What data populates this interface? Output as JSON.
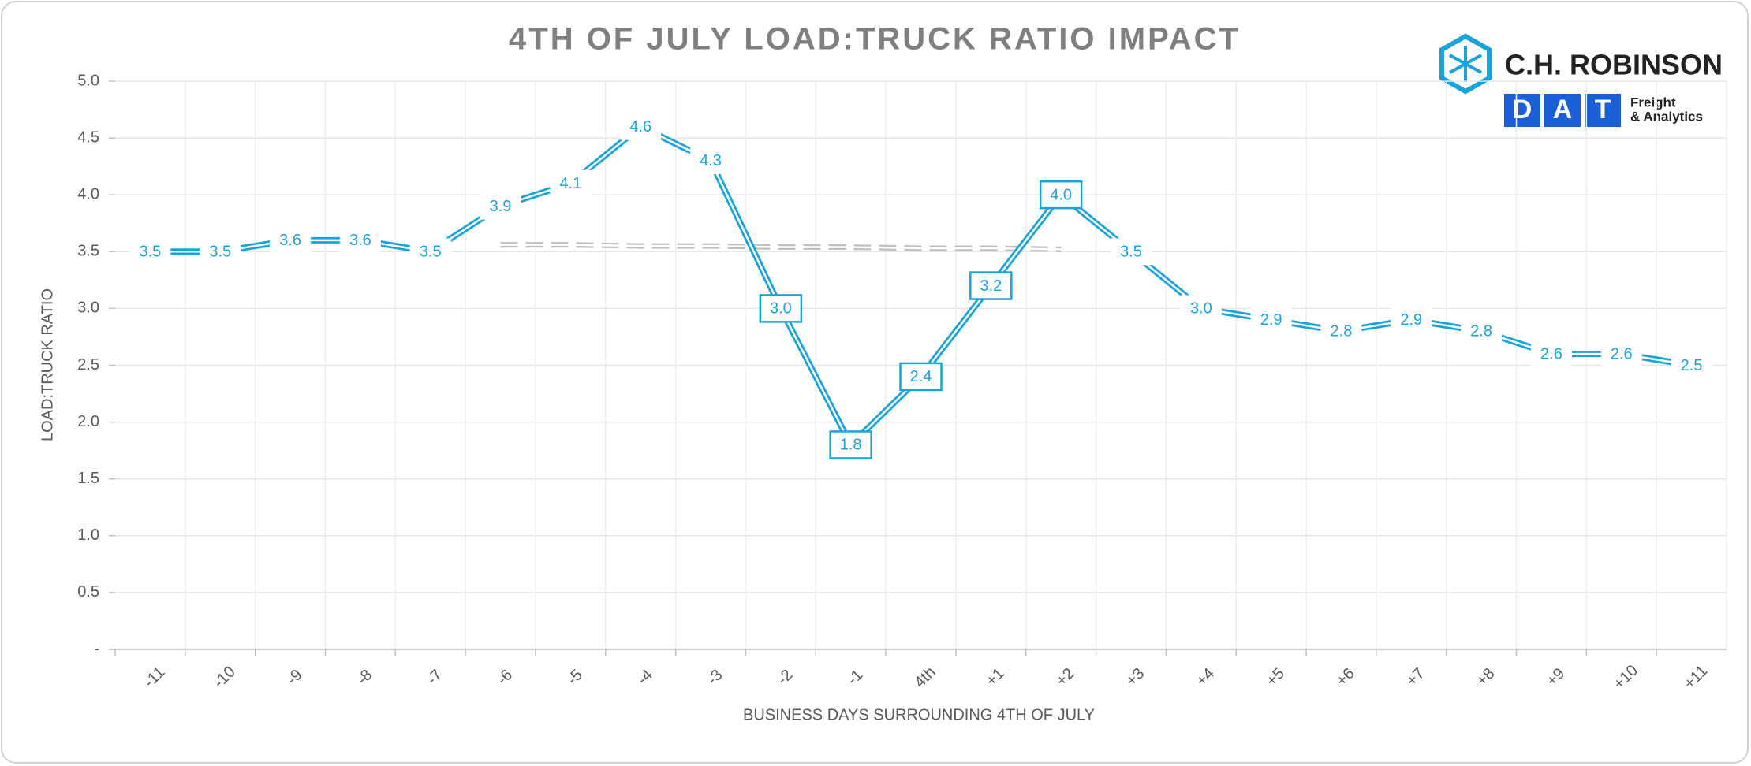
{
  "logos": {
    "brand": "C.H. ROBINSON",
    "dat": [
      "D",
      "A",
      "T"
    ],
    "dat_line1": "Freight",
    "dat_line2": "& Analytics"
  },
  "chart_data": {
    "type": "line",
    "title": "4TH OF JULY LOAD:TRUCK RATIO IMPACT",
    "x_label": "BUSINESS DAYS SURROUNDING 4TH OF JULY",
    "y_label": "LOAD:TRUCK RATIO",
    "categories": [
      "-11",
      "-10",
      "-9",
      "-8",
      "-7",
      "-6",
      "-5",
      "-4",
      "-3",
      "-2",
      "-1",
      "4th",
      "+1",
      "+2",
      "+3",
      "+4",
      "+5",
      "+6",
      "+7",
      "+8",
      "+9",
      "+10",
      "+11"
    ],
    "series": [
      {
        "color": "#1aa3d9",
        "values": [
          3.5,
          3.5,
          3.6,
          3.6,
          3.5,
          3.9,
          4.1,
          4.6,
          4.3,
          3.0,
          1.8,
          2.4,
          3.2,
          4.0,
          3.5,
          3.0,
          2.9,
          2.8,
          2.9,
          2.8,
          2.6,
          2.6,
          2.5
        ],
        "value_labels": [
          "3.5",
          "3.5",
          "3.6",
          "3.6",
          "3.5",
          "3.9",
          "4.1",
          "4.6",
          "4.3",
          "3.0",
          "1.8",
          "2.4",
          "3.2",
          "4.0",
          "3.5",
          "3.0",
          "2.9",
          "2.8",
          "2.9",
          "2.8",
          "2.6",
          "2.6",
          "2.5"
        ],
        "boxed_labels": [
          false,
          false,
          false,
          false,
          false,
          false,
          false,
          false,
          false,
          true,
          true,
          true,
          true,
          true,
          false,
          false,
          false,
          false,
          false,
          false,
          false,
          false,
          false
        ]
      },
      {
        "color": "#bfbfbf",
        "dashed": true,
        "values": [
          null,
          null,
          null,
          null,
          null,
          3.56,
          3.56,
          3.55,
          3.55,
          3.54,
          3.54,
          3.53,
          3.53,
          3.52,
          null,
          null,
          null,
          null,
          null,
          null,
          null,
          null,
          null
        ]
      }
    ],
    "ylim": [
      0,
      5
    ],
    "yticks": [
      {
        "value": 0,
        "label": "-"
      },
      0.5,
      {
        "value": 1,
        "label": "1.0"
      },
      1.5,
      {
        "value": 2,
        "label": "2.0"
      },
      2.5,
      {
        "value": 3,
        "label": "3.0"
      },
      3.5,
      {
        "value": 4,
        "label": "4.0"
      },
      4.5,
      {
        "value": 5,
        "label": "5.0"
      }
    ],
    "grid": true
  }
}
